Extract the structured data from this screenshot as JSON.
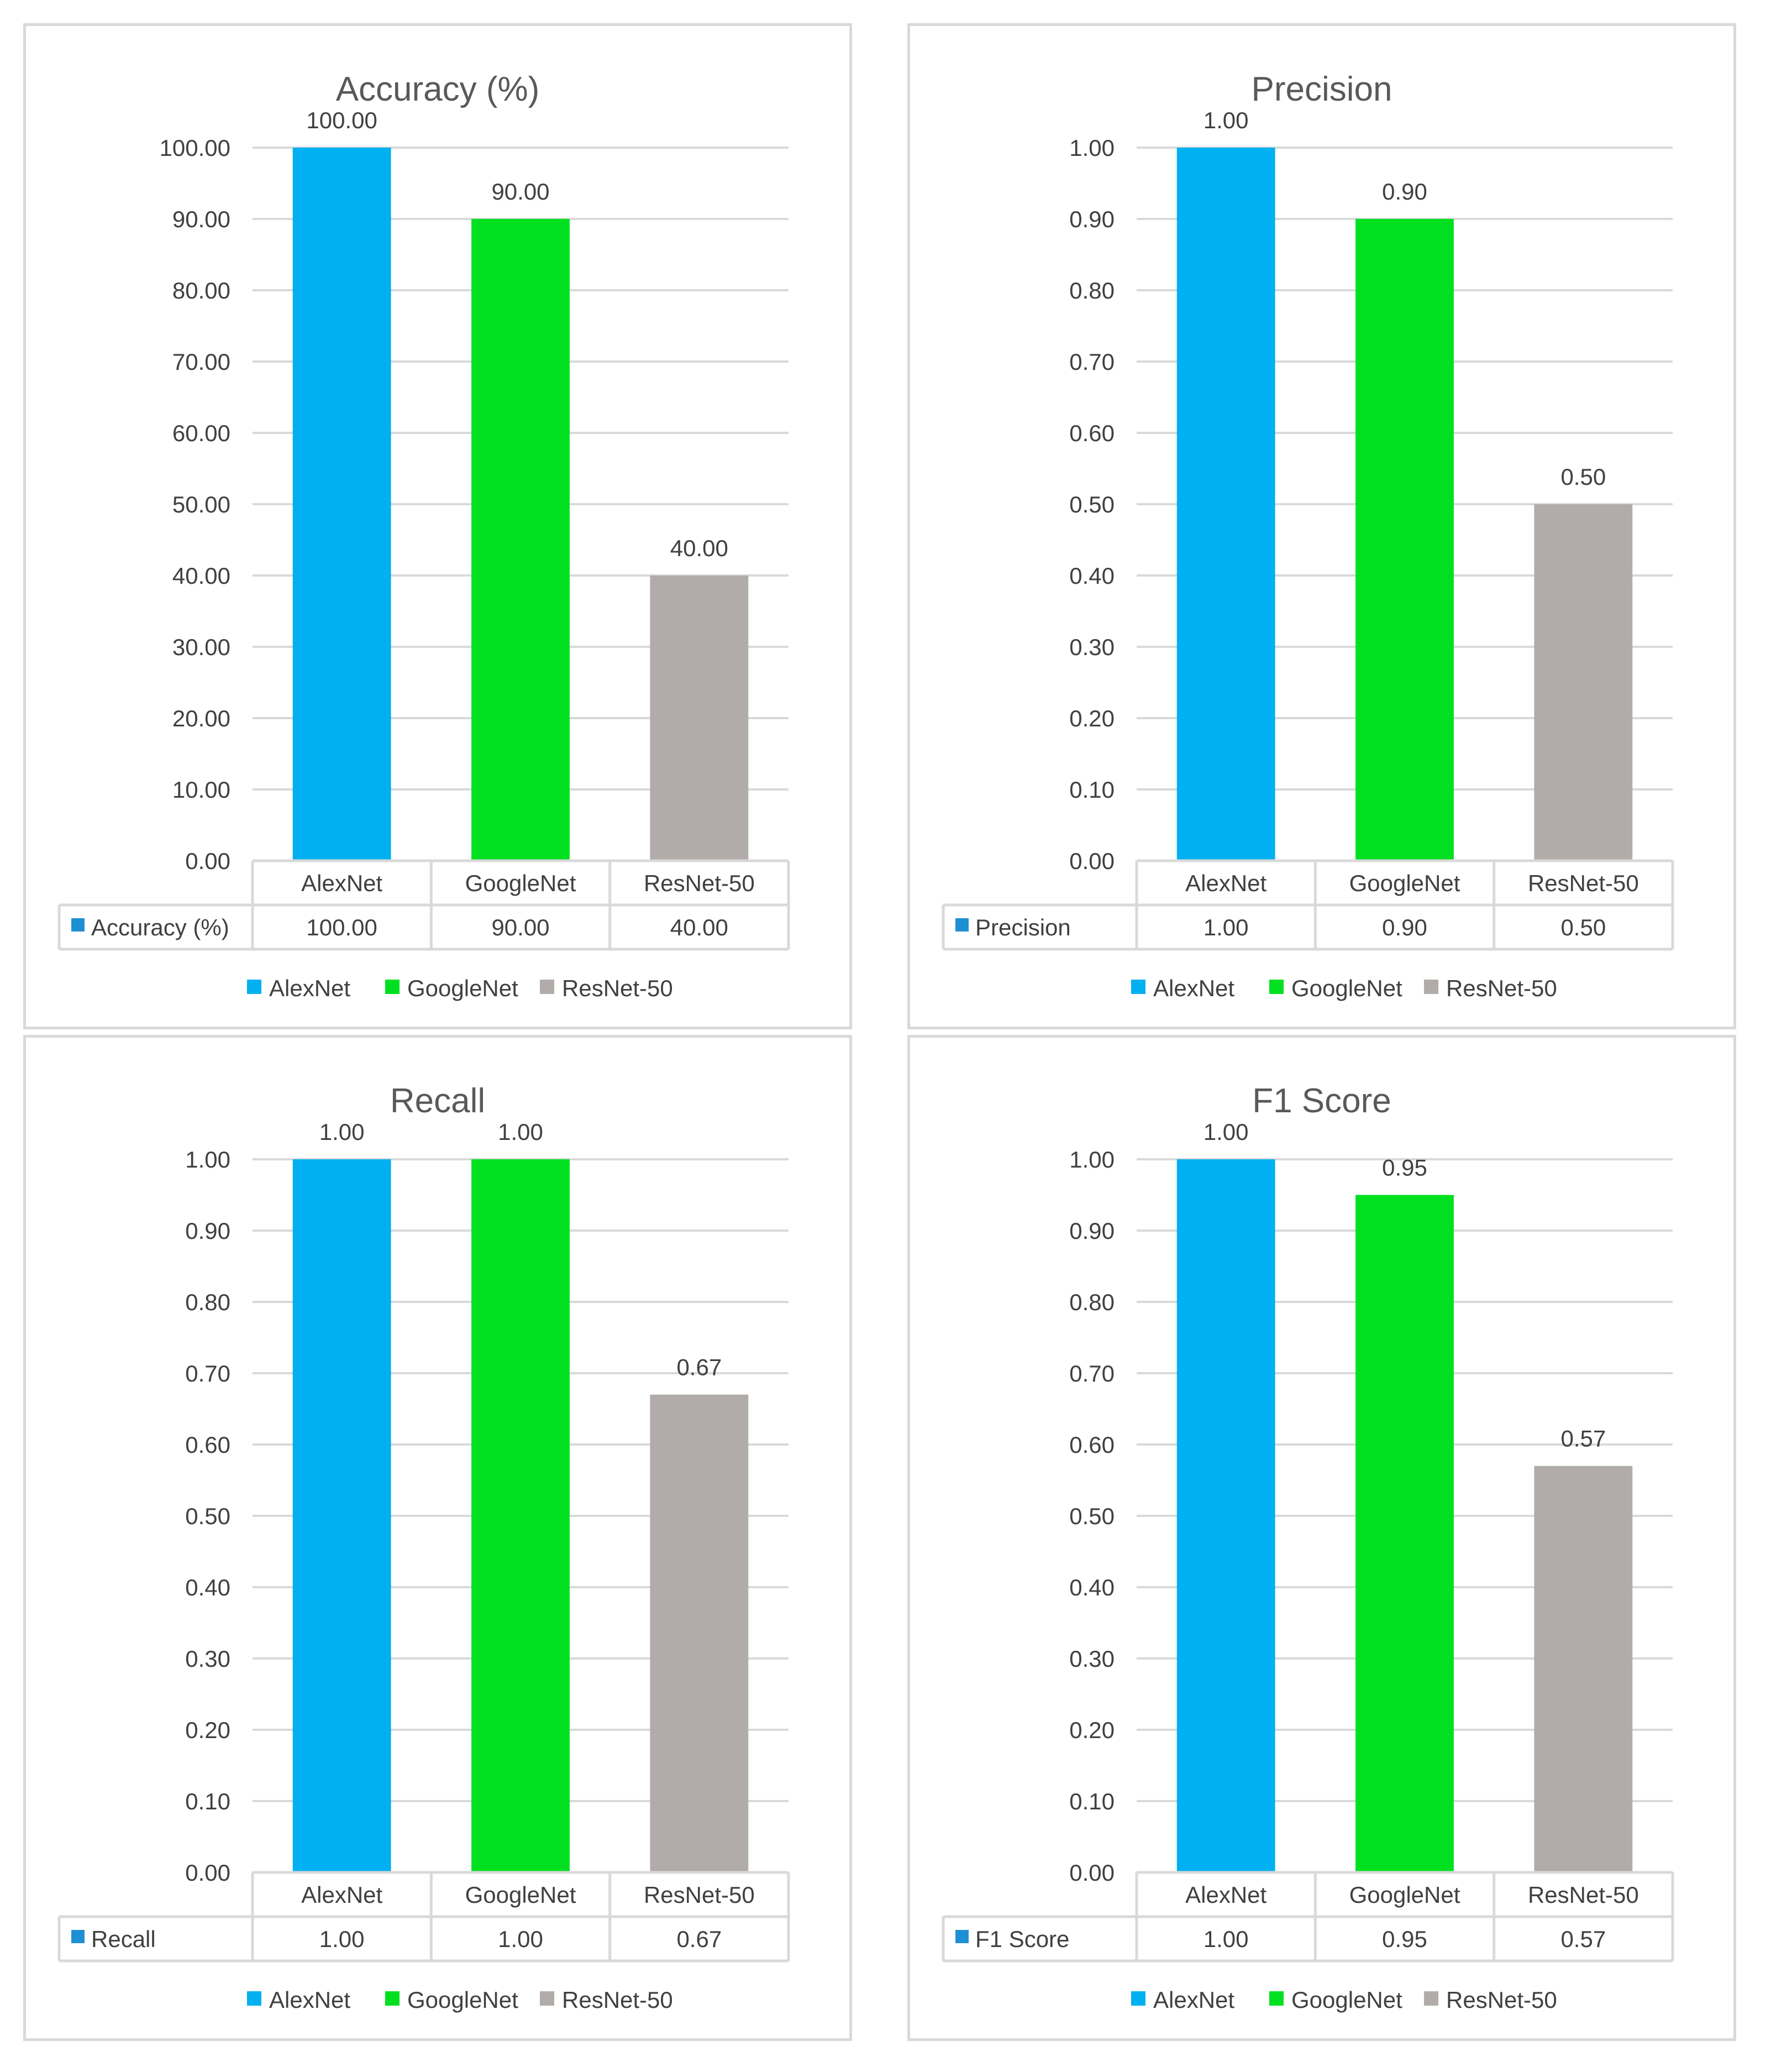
{
  "colors": {
    "AlexNet": "#00b0f0",
    "GoogleNet": "#00e020",
    "ResNet-50": "#b1aca9",
    "legend_key_table": "#1f8fd4",
    "grid": "#d9d9d9",
    "text": "#404040",
    "title": "#595959"
  },
  "chart_data": [
    {
      "id": "accuracy",
      "type": "bar",
      "title": "Accuracy (%)",
      "categories": [
        "AlexNet",
        "GoogleNet",
        "ResNet-50"
      ],
      "values": [
        100.0,
        90.0,
        40.0
      ],
      "labels": [
        "100.00",
        "90.00",
        "40.00"
      ],
      "ylim": [
        0,
        100
      ],
      "yticks": [
        "0.00",
        "10.00",
        "20.00",
        "30.00",
        "40.00",
        "50.00",
        "60.00",
        "70.00",
        "80.00",
        "90.00",
        "100.00"
      ],
      "grid": true,
      "data_table": {
        "series_name": "Accuracy (%)",
        "values": [
          "100.00",
          "90.00",
          "40.00"
        ]
      },
      "legend": [
        "AlexNet",
        "GoogleNet",
        "ResNet-50"
      ],
      "legend_position": "bottom"
    },
    {
      "id": "precision",
      "type": "bar",
      "title": "Precision",
      "categories": [
        "AlexNet",
        "GoogleNet",
        "ResNet-50"
      ],
      "values": [
        1.0,
        0.9,
        0.5
      ],
      "labels": [
        "1.00",
        "0.90",
        "0.50"
      ],
      "ylim": [
        0,
        1
      ],
      "yticks": [
        "0.00",
        "0.10",
        "0.20",
        "0.30",
        "0.40",
        "0.50",
        "0.60",
        "0.70",
        "0.80",
        "0.90",
        "1.00"
      ],
      "grid": true,
      "data_table": {
        "series_name": "Precision",
        "values": [
          "1.00",
          "0.90",
          "0.50"
        ]
      },
      "legend": [
        "AlexNet",
        "GoogleNet",
        "ResNet-50"
      ],
      "legend_position": "bottom"
    },
    {
      "id": "recall",
      "type": "bar",
      "title": "Recall",
      "categories": [
        "AlexNet",
        "GoogleNet",
        "ResNet-50"
      ],
      "values": [
        1.0,
        1.0,
        0.67
      ],
      "labels": [
        "1.00",
        "1.00",
        "0.67"
      ],
      "ylim": [
        0,
        1
      ],
      "yticks": [
        "0.00",
        "0.10",
        "0.20",
        "0.30",
        "0.40",
        "0.50",
        "0.60",
        "0.70",
        "0.80",
        "0.90",
        "1.00"
      ],
      "grid": true,
      "data_table": {
        "series_name": "Recall",
        "values": [
          "1.00",
          "1.00",
          "0.67"
        ]
      },
      "legend": [
        "AlexNet",
        "GoogleNet",
        "ResNet-50"
      ],
      "legend_position": "bottom"
    },
    {
      "id": "f1",
      "type": "bar",
      "title": "F1 Score",
      "categories": [
        "AlexNet",
        "GoogleNet",
        "ResNet-50"
      ],
      "values": [
        1.0,
        0.95,
        0.57
      ],
      "labels": [
        "1.00",
        "0.95",
        "0.57"
      ],
      "ylim": [
        0,
        1
      ],
      "yticks": [
        "0.00",
        "0.10",
        "0.20",
        "0.30",
        "0.40",
        "0.50",
        "0.60",
        "0.70",
        "0.80",
        "0.90",
        "1.00"
      ],
      "grid": true,
      "data_table": {
        "series_name": "F1 Score",
        "values": [
          "1.00",
          "0.95",
          "0.57"
        ]
      },
      "legend": [
        "AlexNet",
        "GoogleNet",
        "ResNet-50"
      ],
      "legend_position": "bottom"
    }
  ]
}
